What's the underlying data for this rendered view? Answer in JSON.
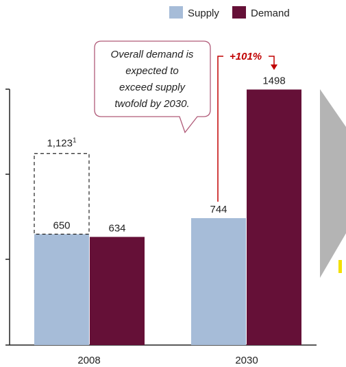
{
  "chart_data": {
    "type": "bar",
    "categories": [
      "2008",
      "2030"
    ],
    "series": [
      {
        "name": "Supply",
        "values": [
          650,
          744
        ]
      },
      {
        "name": "Demand",
        "values": [
          634,
          1498
        ]
      }
    ],
    "ylim": [
      0,
      1500
    ],
    "grid": false,
    "legend": "top-right",
    "annotations": {
      "dashed_value_label": "1,123",
      "dashed_value_superscript": "1",
      "dashed_value": 1123,
      "growth_label": "+101%",
      "callout_lines": [
        "Overall demand is",
        "expected to",
        "exceed supply",
        "twofold by 2030."
      ]
    }
  },
  "colors": {
    "supply": "#a6bcd8",
    "demand": "#651037",
    "growth": "#c00000",
    "arrow": "#b4b4b4",
    "marker": "#f2e000",
    "axis": "#222222",
    "callout_border": "#b05a78"
  }
}
